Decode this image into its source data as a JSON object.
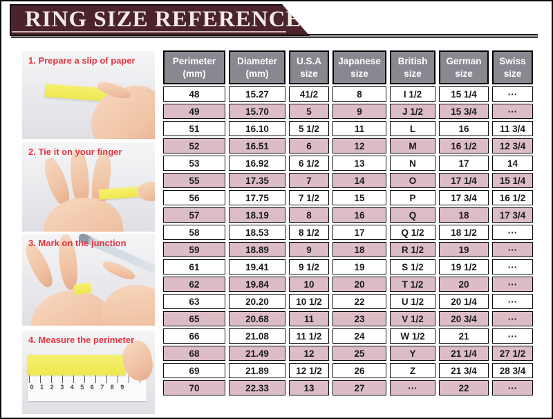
{
  "title": "RING SIZE REFERENCE",
  "steps": [
    {
      "label": "1. Prepare a slip of paper"
    },
    {
      "label": "2. Tie it on your finger"
    },
    {
      "label": "3. Mark on the junction"
    },
    {
      "label": "4. Measure the perimeter",
      "ruler_numbers": "0 1 2 3 4 5 6 7 8 9"
    }
  ],
  "chart_data": {
    "type": "table",
    "title": "RING SIZE REFERENCE",
    "columns": [
      "Perimeter (mm)",
      "Diameter (mm)",
      "U.S.A size",
      "Japanese size",
      "British size",
      "German size",
      "Swiss size"
    ],
    "rows": [
      [
        "48",
        "15.27",
        "41/2",
        "8",
        "I 1/2",
        "15 1/4",
        "···"
      ],
      [
        "49",
        "15.70",
        "5",
        "9",
        "J 1/2",
        "15 3/4",
        "···"
      ],
      [
        "51",
        "16.10",
        "5 1/2",
        "11",
        "L",
        "16",
        "11 3/4"
      ],
      [
        "52",
        "16.51",
        "6",
        "12",
        "M",
        "16 1/2",
        "12 3/4"
      ],
      [
        "53",
        "16.92",
        "6 1/2",
        "13",
        "N",
        "17",
        "14"
      ],
      [
        "55",
        "17.35",
        "7",
        "14",
        "O",
        "17 1/4",
        "15 1/4"
      ],
      [
        "56",
        "17.75",
        "7 1/2",
        "15",
        "P",
        "17 3/4",
        "16 1/2"
      ],
      [
        "57",
        "18.19",
        "8",
        "16",
        "Q",
        "18",
        "17 3/4"
      ],
      [
        "58",
        "18.53",
        "8 1/2",
        "17",
        "Q 1/2",
        "18 1/2",
        "···"
      ],
      [
        "59",
        "18.89",
        "9",
        "18",
        "R 1/2",
        "19",
        "···"
      ],
      [
        "61",
        "19.41",
        "9 1/2",
        "19",
        "S 1/2",
        "19 1/2",
        "···"
      ],
      [
        "62",
        "19.84",
        "10",
        "20",
        "T 1/2",
        "20",
        "···"
      ],
      [
        "63",
        "20.20",
        "10 1/2",
        "22",
        "U 1/2",
        "20 1/4",
        "···"
      ],
      [
        "65",
        "20.68",
        "11",
        "23",
        "V 1/2",
        "20 3/4",
        "···"
      ],
      [
        "66",
        "21.08",
        "11 1/2",
        "24",
        "W 1/2",
        "21",
        "···"
      ],
      [
        "68",
        "21.49",
        "12",
        "25",
        "Y",
        "21 1/4",
        "27 1/2"
      ],
      [
        "69",
        "21.89",
        "12 1/2",
        "26",
        "Z",
        "21 3/4",
        "28 3/4"
      ],
      [
        "70",
        "22.33",
        "13",
        "27",
        "···",
        "22",
        "···"
      ]
    ]
  },
  "colors": {
    "banner_bg": "#4b242b",
    "banner_text": "#f3e9e6",
    "header_bg": "#8a8790",
    "row_pink": "#dcbdc5",
    "step_label": "#e23540",
    "paper_yellow": "#f2ec62",
    "skin": "#f3cbae"
  }
}
